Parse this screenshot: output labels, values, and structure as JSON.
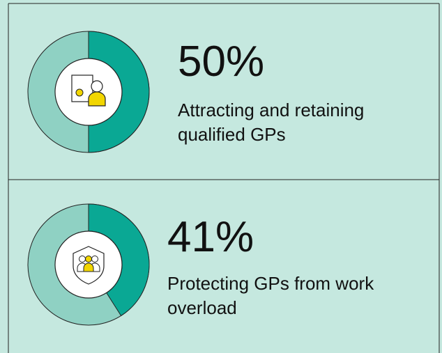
{
  "chart_data": [
    {
      "type": "donut",
      "values": [
        50
      ],
      "value_labels": [
        "50%"
      ],
      "categories": [
        "Attracting and retaining qualified GPs"
      ],
      "color": "#0aa894",
      "track_color": "#8fd1c3"
    },
    {
      "type": "donut",
      "values": [
        41
      ],
      "value_labels": [
        "41%"
      ],
      "categories": [
        "Protecting GPs from work overload"
      ],
      "color": "#0aa894",
      "track_color": "#8fd1c3"
    }
  ]
}
